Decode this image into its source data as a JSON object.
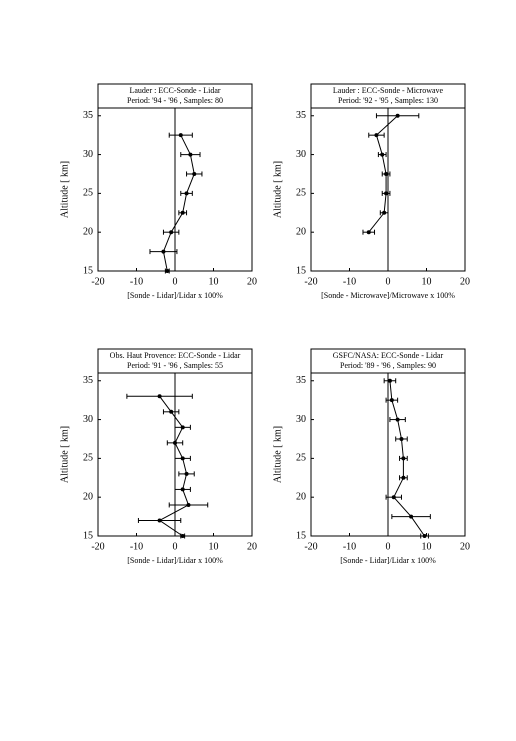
{
  "chart_data": [
    {
      "type": "line",
      "title": "Lauder : ECC-Sonde - Lidar",
      "subtitle": "Period: '94 - '96 , Samples: 80",
      "xlabel": "[Sonde - Lidar]/Lidar x 100%",
      "ylabel": "Altitude [ km]",
      "xlim": [
        -20,
        20
      ],
      "xticks": [
        -20,
        -10,
        0,
        10,
        20
      ],
      "ylim": [
        15,
        36
      ],
      "yticks": [
        15,
        20,
        25,
        30,
        35
      ],
      "series": [
        {
          "color": "#000000",
          "x": [
            1.5,
            4,
            5,
            3,
            2,
            -1,
            -3,
            -2
          ],
          "y": [
            32.5,
            30,
            27.5,
            25,
            22.5,
            20,
            17.5,
            15
          ],
          "xerr": [
            3,
            2.5,
            2,
            1.5,
            1,
            2,
            3.5,
            0.5
          ]
        }
      ]
    },
    {
      "type": "line",
      "title": "Lauder : ECC-Sonde - Microwave",
      "subtitle": "Period: '92 - '95 , Samples: 130",
      "xlabel": "[Sonde - Microwave]/Microwave x 100%",
      "ylabel": "Altitude [ km]",
      "xlim": [
        -20,
        20
      ],
      "xticks": [
        -20,
        -10,
        0,
        10,
        20
      ],
      "ylim": [
        15,
        36
      ],
      "yticks": [
        15,
        20,
        25,
        30,
        35
      ],
      "series": [
        {
          "color": "#000000",
          "x": [
            2.5,
            -3,
            -1.5,
            -0.5,
            -0.5,
            -1,
            -5
          ],
          "y": [
            35,
            32.5,
            30,
            27.5,
            25,
            22.5,
            20
          ],
          "xerr": [
            5.5,
            2,
            1,
            1,
            1,
            1,
            1.5
          ]
        }
      ]
    },
    {
      "type": "line",
      "title": "Obs. Haut Provence: ECC-Sonde - Lidar",
      "subtitle": "Period: '91 - '96 , Samples: 55",
      "xlabel": "[Sonde - Lidar]/Lidar x 100%",
      "ylabel": "Altitude [ km]",
      "xlim": [
        -20,
        20
      ],
      "xticks": [
        -20,
        -10,
        0,
        10,
        20
      ],
      "ylim": [
        15,
        36
      ],
      "yticks": [
        15,
        20,
        25,
        30,
        35
      ],
      "series": [
        {
          "color": "#000000",
          "x": [
            -4,
            -1,
            2,
            0,
            2,
            3,
            2,
            3.5,
            -4,
            2
          ],
          "y": [
            33,
            31,
            29,
            27,
            25,
            23,
            21,
            19,
            17,
            15
          ],
          "xerr": [
            8.5,
            2,
            2,
            2,
            2,
            2,
            2,
            5,
            5.5,
            0.5
          ]
        }
      ]
    },
    {
      "type": "line",
      "title": "GSFC/NASA: ECC-Sonde - Lidar",
      "subtitle": "Period: '89 - '96 , Samples: 90",
      "xlabel": "[Sonde - Lidar]/Lidar x 100%",
      "ylabel": "Altitude [ km]",
      "xlim": [
        -20,
        20
      ],
      "xticks": [
        -20,
        -10,
        0,
        10,
        20
      ],
      "ylim": [
        15,
        36
      ],
      "yticks": [
        15,
        20,
        25,
        30,
        35
      ],
      "series": [
        {
          "color": "#000000",
          "x": [
            0.5,
            1,
            2.5,
            3.5,
            4,
            4,
            1.5,
            6,
            9.5
          ],
          "y": [
            35,
            32.5,
            30,
            27.5,
            25,
            22.5,
            20,
            17.5,
            15
          ],
          "xerr": [
            1.5,
            1.5,
            2,
            1.5,
            1,
            1,
            2,
            5,
            1
          ]
        }
      ]
    }
  ]
}
